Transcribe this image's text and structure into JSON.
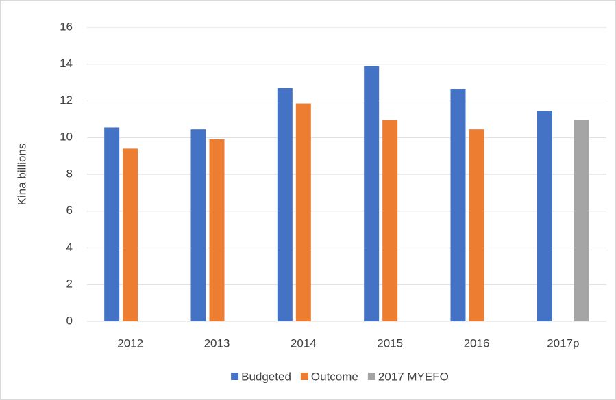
{
  "chart_data": {
    "type": "bar",
    "y_label": "Kina billions",
    "categories": [
      "2012",
      "2013",
      "2014",
      "2015",
      "2016",
      "2017p"
    ],
    "series": [
      {
        "name": "Budgeted",
        "color": "#4472c4",
        "values": [
          10.55,
          10.45,
          12.7,
          13.9,
          12.65,
          11.45
        ]
      },
      {
        "name": "Outcome",
        "color": "#ed7d31",
        "values": [
          9.4,
          9.9,
          11.85,
          10.95,
          10.45,
          null
        ]
      },
      {
        "name": "2017 MYEFO",
        "color": "#a5a5a5",
        "values": [
          null,
          null,
          null,
          null,
          null,
          10.95
        ]
      }
    ],
    "ylim": [
      0,
      16
    ],
    "yticks": [
      0,
      2,
      4,
      6,
      8,
      10,
      12,
      14,
      16
    ],
    "grid": true,
    "legend": "bottom"
  }
}
